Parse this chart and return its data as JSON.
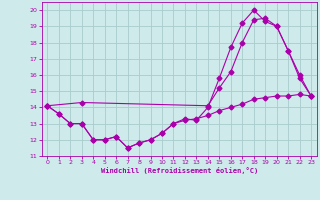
{
  "xlabel": "Windchill (Refroidissement éolien,°C)",
  "bg_color": "#ceeaea",
  "line_color": "#aa00aa",
  "grid_color": "#aacccc",
  "xlim": [
    -0.5,
    23.5
  ],
  "ylim": [
    11,
    20.5
  ],
  "yticks": [
    11,
    12,
    13,
    14,
    15,
    16,
    17,
    18,
    19,
    20
  ],
  "xticks": [
    0,
    1,
    2,
    3,
    4,
    5,
    6,
    7,
    8,
    9,
    10,
    11,
    12,
    13,
    14,
    15,
    16,
    17,
    18,
    19,
    20,
    21,
    22,
    23
  ],
  "series1_x": [
    0,
    1,
    2,
    3,
    4,
    5,
    6,
    7,
    8,
    9,
    10,
    11,
    12,
    13,
    14,
    15,
    16,
    17,
    18,
    19,
    20,
    21,
    22,
    23
  ],
  "series1_y": [
    14.1,
    13.6,
    13.0,
    13.0,
    12.0,
    12.0,
    12.2,
    11.5,
    11.8,
    12.0,
    12.4,
    13.0,
    13.2,
    13.3,
    13.5,
    13.8,
    14.0,
    14.2,
    14.5,
    14.6,
    14.7,
    14.7,
    14.8,
    14.7
  ],
  "series2_x": [
    0,
    1,
    2,
    3,
    4,
    5,
    6,
    7,
    8,
    9,
    10,
    11,
    12,
    13,
    14,
    15,
    16,
    17,
    18,
    19,
    20,
    21,
    22,
    23
  ],
  "series2_y": [
    14.1,
    13.6,
    13.0,
    13.0,
    12.0,
    12.0,
    12.2,
    11.5,
    11.8,
    12.0,
    12.4,
    13.0,
    13.3,
    13.2,
    14.0,
    15.8,
    17.7,
    19.2,
    20.0,
    19.3,
    19.0,
    17.5,
    16.0,
    14.7
  ],
  "series3_x": [
    0,
    3,
    14,
    15,
    16,
    17,
    18,
    19,
    20,
    21,
    22,
    23
  ],
  "series3_y": [
    14.1,
    14.3,
    14.1,
    15.2,
    16.2,
    18.0,
    19.4,
    19.5,
    19.0,
    17.5,
    15.8,
    14.7
  ]
}
